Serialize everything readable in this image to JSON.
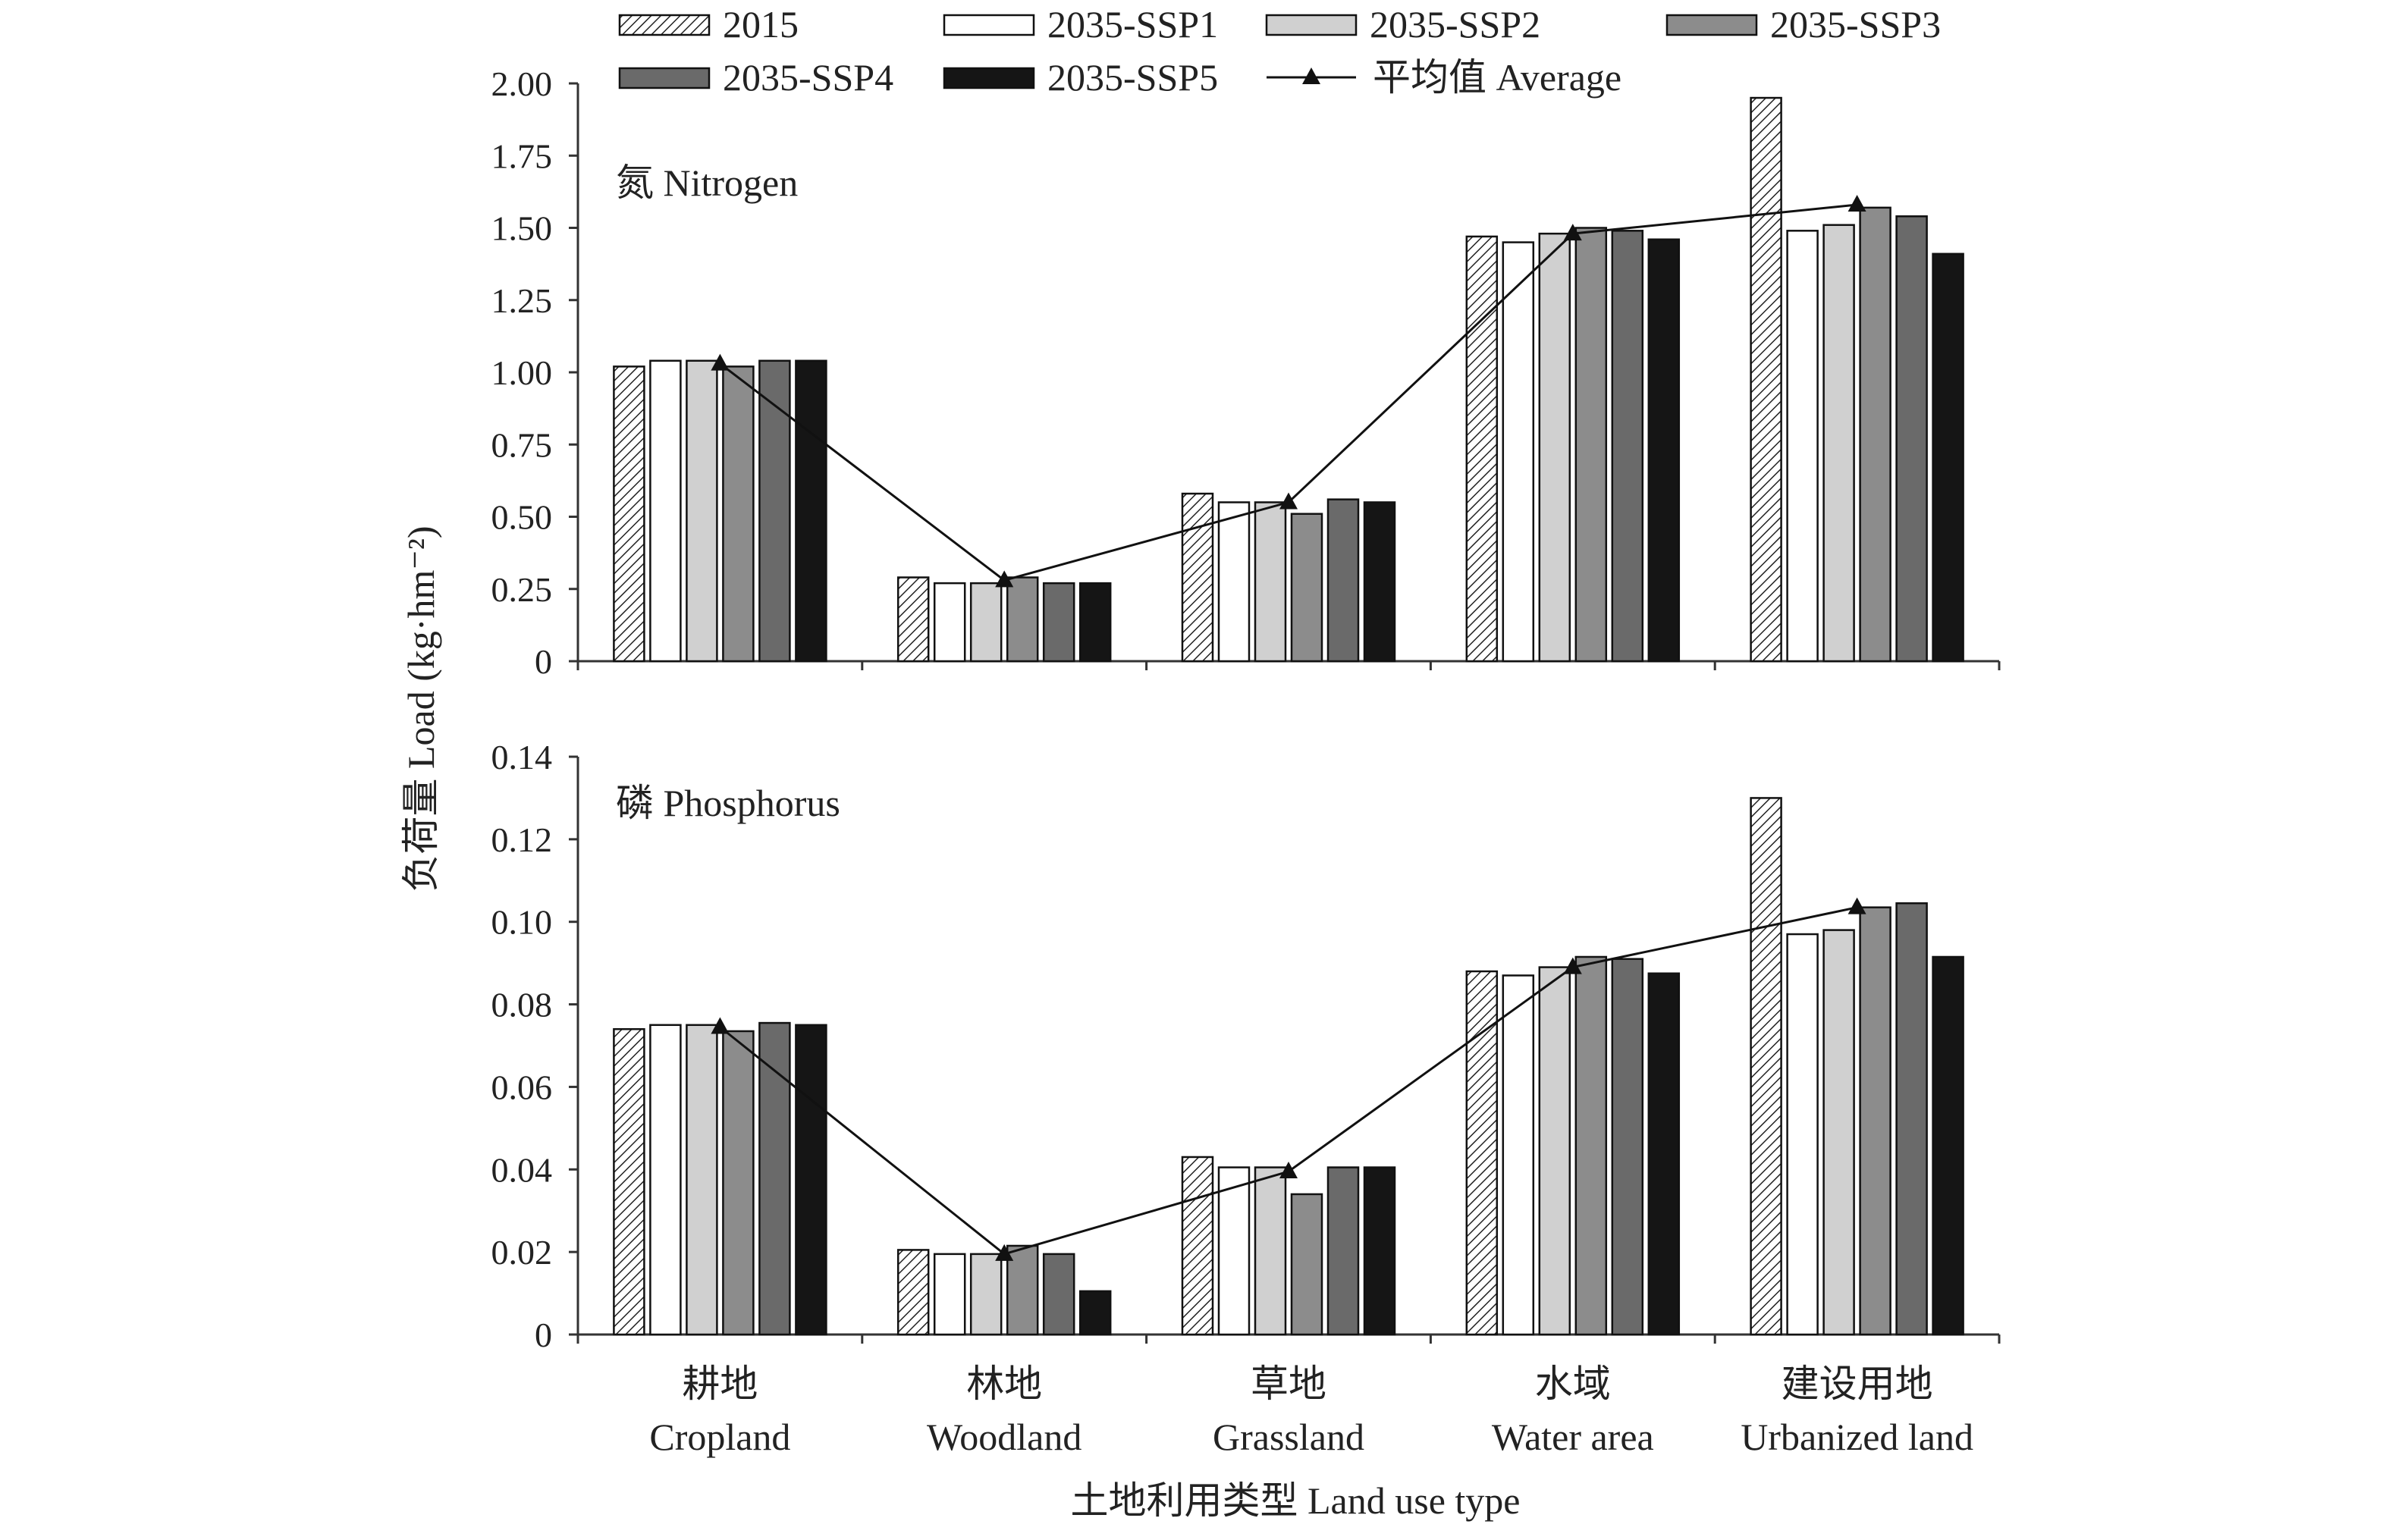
{
  "legend": [
    {
      "label": "2015",
      "style": "hatched"
    },
    {
      "label": "2035-SSP1",
      "style": "white"
    },
    {
      "label": "2035-SSP2",
      "style": "lightgray"
    },
    {
      "label": "2035-SSP3",
      "style": "gray"
    },
    {
      "label": "2035-SSP4",
      "style": "darkgray"
    },
    {
      "label": "2035-SSP5",
      "style": "black"
    },
    {
      "label": "平均值 Average",
      "style": "line-triangle"
    }
  ],
  "colors": {
    "white": "#ffffff",
    "lightgray": "#d0d0d0",
    "gray": "#8c8c8c",
    "darkgray": "#6a6a6a",
    "black": "#151515",
    "outline": "#111111",
    "axis": "#333333"
  },
  "y_axis_label": "负荷量 Load (kg·hm⁻²)",
  "x_axis_label": "土地利用类型 Land use type",
  "categories": [
    {
      "zh": "耕地",
      "en": "Cropland"
    },
    {
      "zh": "林地",
      "en": "Woodland"
    },
    {
      "zh": "草地",
      "en": "Grassland"
    },
    {
      "zh": "水域",
      "en": "Water area"
    },
    {
      "zh": "建设用地",
      "en": "Urbanized land"
    }
  ],
  "chart_data": [
    {
      "type": "bar",
      "title": "氮 Nitrogen",
      "ylim": [
        0,
        2.0
      ],
      "yticks": [
        "0",
        "0.25",
        "0.50",
        "0.75",
        "1.00",
        "1.25",
        "1.50",
        "1.75",
        "2.00"
      ],
      "categories": [
        "Cropland",
        "Woodland",
        "Grassland",
        "Water area",
        "Urbanized land"
      ],
      "series": [
        {
          "name": "2015",
          "values": [
            1.02,
            0.29,
            0.58,
            1.47,
            1.95
          ]
        },
        {
          "name": "2035-SSP1",
          "values": [
            1.04,
            0.27,
            0.55,
            1.45,
            1.49
          ]
        },
        {
          "name": "2035-SSP2",
          "values": [
            1.04,
            0.27,
            0.55,
            1.48,
            1.51
          ]
        },
        {
          "name": "2035-SSP3",
          "values": [
            1.02,
            0.29,
            0.51,
            1.5,
            1.57
          ]
        },
        {
          "name": "2035-SSP4",
          "values": [
            1.04,
            0.27,
            0.56,
            1.49,
            1.54
          ]
        },
        {
          "name": "2035-SSP5",
          "values": [
            1.04,
            0.27,
            0.55,
            1.46,
            1.41
          ]
        }
      ],
      "average": {
        "name": "平均值 Average",
        "values": [
          1.03,
          0.28,
          0.55,
          1.48,
          1.58
        ]
      }
    },
    {
      "type": "bar",
      "title": "磷 Phosphorus",
      "ylim": [
        0,
        0.14
      ],
      "yticks": [
        "0",
        "0.02",
        "0.04",
        "0.06",
        "0.08",
        "0.10",
        "0.12",
        "0.14"
      ],
      "categories": [
        "Cropland",
        "Woodland",
        "Grassland",
        "Water area",
        "Urbanized land"
      ],
      "series": [
        {
          "name": "2015",
          "values": [
            0.074,
            0.0205,
            0.043,
            0.088,
            0.13
          ]
        },
        {
          "name": "2035-SSP1",
          "values": [
            0.075,
            0.0195,
            0.0405,
            0.087,
            0.097
          ]
        },
        {
          "name": "2035-SSP2",
          "values": [
            0.075,
            0.0195,
            0.0405,
            0.089,
            0.098
          ]
        },
        {
          "name": "2035-SSP3",
          "values": [
            0.0735,
            0.0215,
            0.034,
            0.0915,
            0.1035
          ]
        },
        {
          "name": "2035-SSP4",
          "values": [
            0.0755,
            0.0195,
            0.0405,
            0.091,
            0.1045
          ]
        },
        {
          "name": "2035-SSP5",
          "values": [
            0.075,
            0.0105,
            0.0405,
            0.0875,
            0.0915
          ]
        }
      ],
      "average": {
        "name": "平均值 Average",
        "values": [
          0.0745,
          0.0195,
          0.0395,
          0.089,
          0.1035
        ]
      }
    }
  ]
}
